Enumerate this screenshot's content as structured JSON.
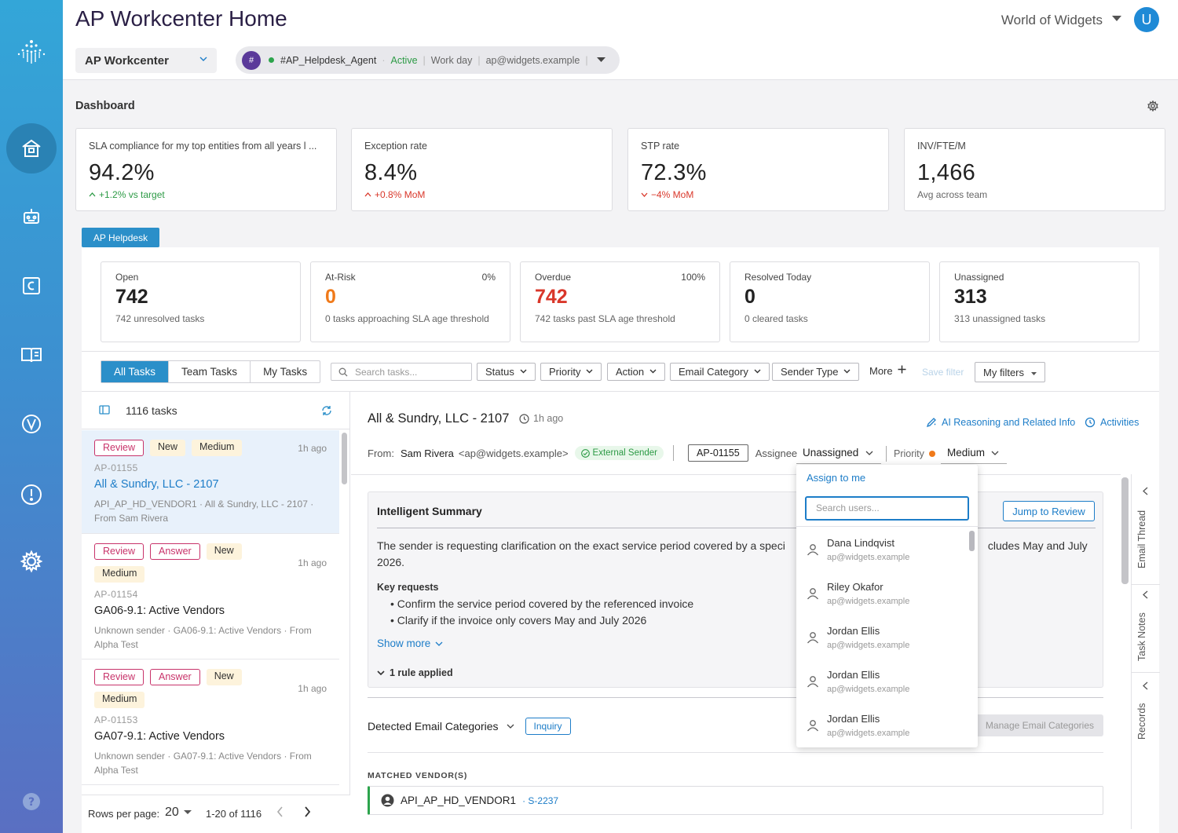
{
  "app": {
    "title": "AP Workcenter Home",
    "org_name": "World of Widgets",
    "avatar_initial": "U",
    "accent_color": "#2b8fc9"
  },
  "workspace": {
    "selected": "AP Workcenter"
  },
  "agent": {
    "hash_label": "#",
    "name": "#AP_Helpdesk_Agent",
    "status": "Active",
    "schedule": "Work day",
    "email": "ap@widgets.example",
    "separator": "|"
  },
  "rail": {
    "icons": [
      "logo-icon",
      "home-icon",
      "robot-icon",
      "connector-icon",
      "book-icon",
      "vendor-icon",
      "alert-icon",
      "settings-icon",
      "help-icon"
    ]
  },
  "dashboard": {
    "title": "Dashboard",
    "kpis": [
      {
        "label": "SLA compliance for my top entities from all years l ...",
        "value": "94.2%",
        "delta": "+1.2% vs target",
        "trend": "up",
        "color": "#2c9a45"
      },
      {
        "label": "Exception rate",
        "value": "8.4%",
        "delta": "+0.8% MoM",
        "trend": "up",
        "color": "#d9372a"
      },
      {
        "label": "STP rate",
        "value": "72.3%",
        "delta": "−4% MoM",
        "trend": "down",
        "color": "#d9372a"
      },
      {
        "label": "INV/FTE/M",
        "value": "1,466",
        "delta": "Avg across team",
        "trend": "none",
        "color": "#666666"
      }
    ]
  },
  "helpdesk": {
    "tag": "AP Helpdesk",
    "stats": [
      {
        "label": "Open",
        "pct": "",
        "value": "742",
        "sub": "742 unresolved tasks",
        "color": "#222222"
      },
      {
        "label": "At-Risk",
        "pct": "0%",
        "value": "0",
        "sub": "0 tasks approaching SLA age threshold",
        "color": "#f07a1a"
      },
      {
        "label": "Overdue",
        "pct": "100%",
        "value": "742",
        "sub": "742 tasks past SLA age threshold",
        "color": "#d9372a"
      },
      {
        "label": "Resolved Today",
        "pct": "",
        "value": "0",
        "sub": "0 cleared tasks",
        "color": "#222222"
      },
      {
        "label": "Unassigned",
        "pct": "",
        "value": "313",
        "sub": "313 unassigned tasks",
        "color": "#222222"
      }
    ]
  },
  "filters": {
    "tabs": [
      "All Tasks",
      "Team Tasks",
      "My Tasks"
    ],
    "active_tab": "All Tasks",
    "search_placeholder": "Search tasks...",
    "dropdowns": [
      "Status",
      "Priority",
      "Action",
      "Email Category",
      "Sender Type"
    ],
    "more": "More",
    "save_filter": "Save filter",
    "my_filters": "My filters"
  },
  "task_list": {
    "count": "1116 tasks",
    "tasks": [
      {
        "badges": [
          "Review",
          "New",
          "Medium"
        ],
        "time": "1h ago",
        "id": "AP-01155",
        "name": "All & Sundry, LLC - 2107",
        "meta": "API_AP_HD_VENDOR1 · All & Sundry, LLC - 2107 · From Sam Rivera"
      },
      {
        "badges": [
          "Review",
          "Answer",
          "New",
          "Medium"
        ],
        "time": "1h ago",
        "id": "AP-01154",
        "name": "GA06-9.1: Active Vendors",
        "meta": "Unknown sender · GA06-9.1: Active Vendors · From Alpha Test"
      },
      {
        "badges": [
          "Review",
          "Answer",
          "New",
          "Medium"
        ],
        "time": "1h ago",
        "id": "AP-01153",
        "name": "GA07-9.1: Active Vendors",
        "meta": "Unknown sender · GA07-9.1: Active Vendors · From Alpha Test"
      }
    ],
    "pager": {
      "rows_label": "Rows per page:",
      "rows": "20",
      "range": "1-20 of 1116"
    }
  },
  "detail": {
    "title": "All & Sundry, LLC - 2107",
    "time": "1h ago",
    "ai_link": "AI Reasoning and Related Info",
    "activities": "Activities",
    "from_label": "From:",
    "sender_name": "Sam Rivera",
    "sender_email": "<ap@widgets.example>",
    "external_badge": "External Sender",
    "ticket_id": "AP-01155",
    "assignee_label": "Assignee",
    "assignee_value": "Unassigned",
    "priority_label": "Priority",
    "priority_value": "Medium",
    "summary": {
      "title": "Intelligent Summary",
      "jump": "Jump to Review",
      "text_left": "The sender is requesting clarification on the exact service period covered by a speci",
      "text_right": "cludes May and July",
      "text_line2": "2026.",
      "key_requests_title": "Key requests",
      "key_requests": [
        "Confirm the service period covered by the referenced invoice",
        "Clarify if the invoice only covers May and July 2026"
      ],
      "show_more": "Show more",
      "rules": "1 rule applied"
    },
    "categories": {
      "title": "Detected Email Categories",
      "badge": "Inquiry",
      "manage": "Manage Email Categories"
    },
    "vendors": {
      "title": "MATCHED VENDOR(S)",
      "name": "API_AP_HD_VENDOR1",
      "id": "· S-2237"
    }
  },
  "side_tabs": [
    "Email Thread",
    "Task Notes",
    "Records"
  ],
  "assign_popover": {
    "assign_me": "Assign to me",
    "search_placeholder": "Search users...",
    "users": [
      {
        "name": "Dana Lindqvist",
        "email": "ap@widgets.example"
      },
      {
        "name": "Riley Okafor",
        "email": "ap@widgets.example"
      },
      {
        "name": "Jordan Ellis",
        "email": "ap@widgets.example"
      },
      {
        "name": "Jordan Ellis",
        "email": "ap@widgets.example"
      },
      {
        "name": "Jordan Ellis",
        "email": "ap@widgets.example"
      }
    ]
  }
}
